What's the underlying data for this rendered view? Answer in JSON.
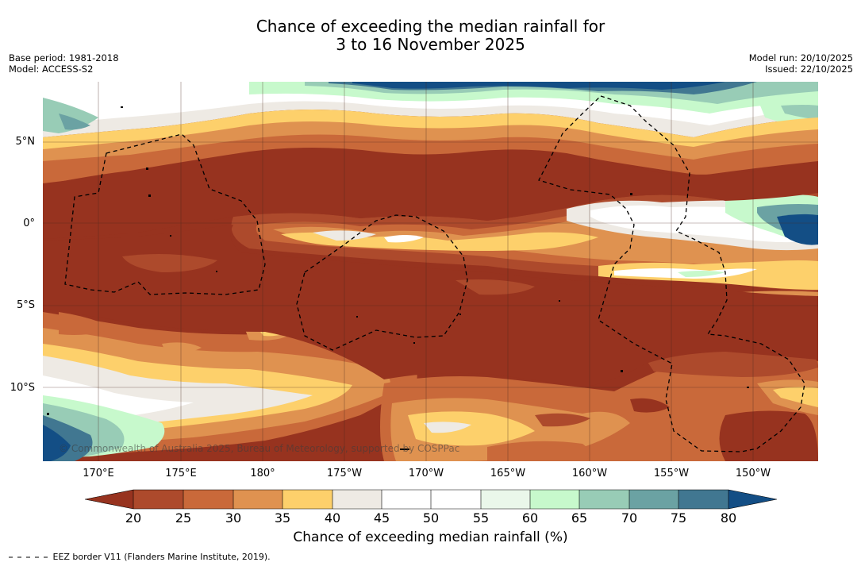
{
  "title": {
    "line1": "Chance of exceeding the median rainfall for",
    "line2": "3 to 16 November 2025"
  },
  "meta": {
    "base_period": "Base period: 1981-2018",
    "model": "Model: ACCESS-S2",
    "model_run": "Model run: 20/10/2025",
    "issued": "Issued: 22/10/2025"
  },
  "map": {
    "lat_labels": [
      "5°N",
      "0°",
      "5°S",
      "10°S"
    ],
    "lon_labels": [
      "170°E",
      "175°E",
      "180°",
      "175°W",
      "170°W",
      "165°W",
      "160°W",
      "155°W",
      "150°W"
    ],
    "copyright": "© Commonwealth of Australia 2025, Bureau of Meteorology, supported by COSPPac",
    "legend_note": "EEZ border V11 (Flanders Marine Institute, 2019)."
  },
  "colorbar": {
    "title": "Chance of exceeding median rainfall (%)",
    "ticks": [
      "20",
      "25",
      "30",
      "35",
      "40",
      "45",
      "50",
      "55",
      "60",
      "65",
      "70",
      "75",
      "80"
    ],
    "colors": {
      "below_20": "#97331f",
      "20_25": "#ad4a2c",
      "25_30": "#c9693a",
      "30_35": "#df9250",
      "35_40": "#fdd06b",
      "40_45": "#eeeae4",
      "45_50": "#ffffff",
      "50_55": "#ffffff",
      "55_60": "#eaf7ea",
      "60_65": "#c7f9cc",
      "65_70": "#98ccb6",
      "70_75": "#6ba2a3",
      "75_80": "#417791",
      "above_80": "#134e85"
    }
  }
}
